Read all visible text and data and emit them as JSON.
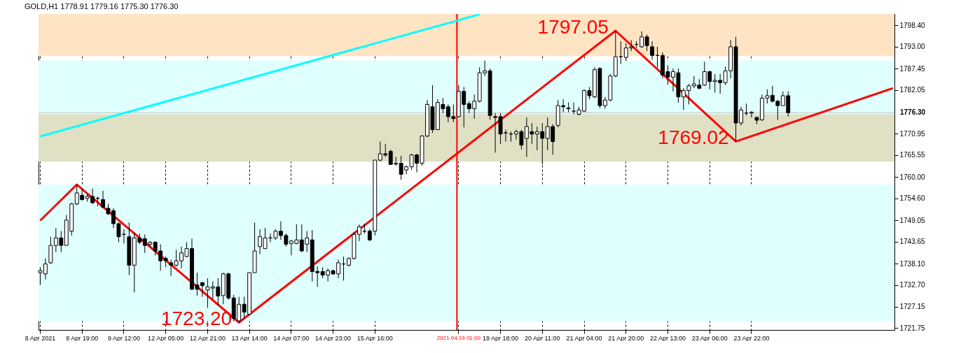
{
  "chart_data": {
    "type": "candlestick",
    "title": "GOLD,H1 1778.91 1779.16 1775.30 1776.30",
    "color": "#000000",
    "categories": [
      "8 Apr 2021",
      null,
      null,
      null,
      null,
      null,
      null,
      null,
      "8 Apr 19:00",
      null,
      null,
      null,
      null,
      null,
      null,
      null,
      "9 Apr 12:00",
      null,
      null,
      null,
      null,
      null,
      null,
      null,
      "12 Apr 05:00",
      null,
      null,
      null,
      null,
      null,
      null,
      null,
      "12 Apr 21:00",
      null,
      null,
      null,
      null,
      null,
      null,
      null,
      "13 Apr 14:00",
      null,
      null,
      null,
      null,
      null,
      null,
      null,
      "14 Apr 07:00",
      null,
      null,
      null,
      null,
      null,
      null,
      null,
      "14 Apr 23:00",
      null,
      null,
      null,
      null,
      null,
      null,
      null,
      "15 Apr 16:00",
      null,
      null,
      null,
      null,
      null,
      null,
      null,
      null,
      null,
      null,
      null,
      null,
      null,
      null,
      null,
      "2021.04.19 01:00",
      null,
      null,
      null,
      null,
      null,
      null,
      null,
      "19 Apr 18:00",
      null,
      null,
      null,
      null,
      null,
      null,
      null,
      "20 Apr 11:00",
      null,
      null,
      null,
      null,
      null,
      null,
      null,
      "21 Apr 04:00",
      null,
      null,
      null,
      null,
      null,
      null,
      null,
      "21 Apr 20:00",
      null,
      null,
      null,
      null,
      null,
      null,
      null,
      "22 Apr 13:00",
      null,
      null,
      null,
      null,
      null,
      null,
      null,
      "23 Apr 06:00",
      null,
      null,
      null,
      null,
      null,
      null,
      null,
      "23 Apr 22:00",
      null,
      null,
      null,
      null,
      null,
      null,
      null,
      null,
      null,
      null,
      null,
      null,
      null,
      null,
      null,
      null,
      null,
      null,
      null,
      null,
      null,
      null,
      null,
      null,
      null,
      null,
      null
    ],
    "ohlc": [
      [
        1735.8,
        1737.2,
        1732.7,
        1736.3
      ],
      [
        1735.5,
        1739.4,
        1734.1,
        1738.0
      ],
      [
        1738.3,
        1744.9,
        1738.0,
        1742.7
      ],
      [
        1742.7,
        1747.1,
        1741.0,
        1744.6
      ],
      [
        1744.6,
        1746.3,
        1741.0,
        1742.7
      ],
      [
        1742.7,
        1750.4,
        1742.7,
        1749.1
      ],
      [
        1746.3,
        1753.5,
        1745.2,
        1753.2
      ],
      [
        1753.2,
        1758.1,
        1752.9,
        1756.0
      ],
      [
        1755.4,
        1757.1,
        1754.0,
        1754.3
      ],
      [
        1754.6,
        1755.7,
        1753.8,
        1755.1
      ],
      [
        1755.1,
        1757.1,
        1753.2,
        1753.5
      ],
      [
        1754.6,
        1755.1,
        1752.6,
        1754.6
      ],
      [
        1754.3,
        1756.5,
        1752.1,
        1752.4
      ],
      [
        1752.1,
        1753.2,
        1750.4,
        1750.7
      ],
      [
        1751.5,
        1752.1,
        1747.1,
        1748.2
      ],
      [
        1748.2,
        1748.5,
        1743.5,
        1744.9
      ],
      [
        1745.5,
        1746.8,
        1743.2,
        1745.5
      ],
      [
        1744.9,
        1748.5,
        1735.2,
        1737.7
      ],
      [
        1737.7,
        1746.0,
        1730.8,
        1744.6
      ],
      [
        1744.6,
        1745.7,
        1743.0,
        1743.5
      ],
      [
        1744.4,
        1745.5,
        1740.8,
        1742.7
      ],
      [
        1743.0,
        1743.8,
        1742.4,
        1743.5
      ],
      [
        1743.5,
        1743.8,
        1740.2,
        1741.3
      ],
      [
        1741.3,
        1743.0,
        1736.3,
        1738.8
      ],
      [
        1739.4,
        1739.9,
        1737.2,
        1738.8
      ],
      [
        1738.3,
        1739.1,
        1735.0,
        1737.7
      ],
      [
        1737.7,
        1741.6,
        1737.4,
        1738.8
      ],
      [
        1738.8,
        1742.4,
        1736.9,
        1740.8
      ],
      [
        1739.9,
        1743.5,
        1739.7,
        1741.9
      ],
      [
        1741.9,
        1744.4,
        1731.4,
        1731.6
      ],
      [
        1732.7,
        1735.8,
        1730.0,
        1731.6
      ],
      [
        1733.3,
        1733.3,
        1729.7,
        1732.5
      ],
      [
        1731.4,
        1734.4,
        1726.9,
        1732.2
      ],
      [
        1731.9,
        1733.6,
        1729.1,
        1732.2
      ],
      [
        1732.2,
        1734.4,
        1727.5,
        1729.9
      ],
      [
        1730.0,
        1735.8,
        1727.8,
        1735.5
      ],
      [
        1735.5,
        1735.8,
        1728.9,
        1729.4
      ],
      [
        1729.4,
        1730.2,
        1723.5,
        1724.2
      ],
      [
        1723.6,
        1729.7,
        1723.2,
        1727.8
      ],
      [
        1727.8,
        1729.7,
        1724.2,
        1725.8
      ],
      [
        1725.3,
        1735.8,
        1725.0,
        1735.8
      ],
      [
        1735.8,
        1748.5,
        1735.8,
        1741.3
      ],
      [
        1742.4,
        1746.8,
        1740.5,
        1744.9
      ],
      [
        1741.9,
        1747.1,
        1741.9,
        1744.6
      ],
      [
        1744.6,
        1745.7,
        1743.5,
        1744.6
      ],
      [
        1744.6,
        1746.8,
        1744.1,
        1746.3
      ],
      [
        1746.3,
        1748.8,
        1744.1,
        1745.2
      ],
      [
        1745.2,
        1745.7,
        1742.4,
        1743.0
      ],
      [
        1743.2,
        1744.1,
        1740.2,
        1743.8
      ],
      [
        1743.2,
        1748.1,
        1743.0,
        1744.1
      ],
      [
        1744.1,
        1748.0,
        1741.0,
        1741.3
      ],
      [
        1743.0,
        1746.3,
        1741.0,
        1744.6
      ],
      [
        1744.1,
        1746.6,
        1733.6,
        1736.1
      ],
      [
        1736.1,
        1737.4,
        1732.2,
        1735.8
      ],
      [
        1736.1,
        1737.2,
        1734.4,
        1735.2
      ],
      [
        1735.2,
        1736.9,
        1733.6,
        1736.3
      ],
      [
        1736.3,
        1736.6,
        1735.2,
        1735.5
      ],
      [
        1735.5,
        1739.1,
        1734.4,
        1738.3
      ],
      [
        1738.0,
        1739.9,
        1733.8,
        1738.0
      ],
      [
        1737.7,
        1739.7,
        1737.4,
        1739.4
      ],
      [
        1739.4,
        1746.0,
        1739.1,
        1745.5
      ],
      [
        1745.5,
        1748.0,
        1743.8,
        1747.4
      ],
      [
        1746.3,
        1748.2,
        1745.7,
        1746.3
      ],
      [
        1746.3,
        1746.8,
        1743.8,
        1744.1
      ],
      [
        1746.3,
        1764.3,
        1745.2,
        1764.3
      ],
      [
        1764.3,
        1769.0,
        1764.0,
        1765.9
      ],
      [
        1765.9,
        1768.4,
        1765.1,
        1765.6
      ],
      [
        1766.5,
        1767.0,
        1763.2,
        1763.2
      ],
      [
        1763.3,
        1765.1,
        1762.9,
        1763.5
      ],
      [
        1763.5,
        1765.4,
        1759.3,
        1760.7
      ],
      [
        1761.8,
        1762.9,
        1760.7,
        1762.6
      ],
      [
        1762.6,
        1765.9,
        1761.8,
        1765.6
      ],
      [
        1765.6,
        1765.9,
        1761.2,
        1763.5
      ],
      [
        1763.5,
        1770.6,
        1762.9,
        1770.4
      ],
      [
        1770.4,
        1779.5,
        1770.1,
        1778.4
      ],
      [
        1777.8,
        1783.3,
        1771.2,
        1772.0
      ],
      [
        1772.0,
        1779.7,
        1772.0,
        1778.9
      ],
      [
        1778.4,
        1780.0,
        1776.2,
        1777.3
      ],
      [
        1777.8,
        1778.4,
        1773.9,
        1775.3
      ],
      [
        1775.3,
        1778.4,
        1773.9,
        1774.8
      ],
      [
        1775.3,
        1783.3,
        1775.1,
        1781.7
      ],
      [
        1781.7,
        1782.8,
        1772.6,
        1778.4
      ],
      [
        1778.6,
        1779.2,
        1776.2,
        1777.3
      ],
      [
        1777.3,
        1780.9,
        1774.8,
        1779.2
      ],
      [
        1779.2,
        1787.8,
        1778.9,
        1786.4
      ],
      [
        1786.4,
        1789.5,
        1785.6,
        1786.9
      ],
      [
        1786.9,
        1787.5,
        1774.5,
        1775.6
      ],
      [
        1775.3,
        1776.2,
        1766.2,
        1775.1
      ],
      [
        1775.3,
        1776.2,
        1768.4,
        1770.9
      ],
      [
        1771.2,
        1772.0,
        1769.0,
        1771.2
      ],
      [
        1770.9,
        1771.5,
        1769.0,
        1770.9
      ],
      [
        1770.9,
        1772.0,
        1769.5,
        1771.5
      ],
      [
        1771.5,
        1772.0,
        1767.0,
        1768.1
      ],
      [
        1769.8,
        1775.1,
        1765.1,
        1772.8
      ],
      [
        1771.5,
        1773.7,
        1768.4,
        1770.9
      ],
      [
        1770.9,
        1772.8,
        1766.8,
        1771.5
      ],
      [
        1771.5,
        1773.7,
        1763.2,
        1769.8
      ],
      [
        1769.8,
        1775.1,
        1766.8,
        1772.8
      ],
      [
        1772.8,
        1773.4,
        1765.7,
        1769.0
      ],
      [
        1773.1,
        1779.5,
        1772.6,
        1778.1
      ],
      [
        1778.1,
        1779.7,
        1776.4,
        1777.8
      ],
      [
        1777.3,
        1778.9,
        1776.4,
        1777.5
      ],
      [
        1776.7,
        1778.9,
        1775.9,
        1776.7
      ],
      [
        1775.9,
        1777.8,
        1775.6,
        1777.0
      ],
      [
        1776.7,
        1782.2,
        1776.4,
        1781.9
      ],
      [
        1781.9,
        1782.8,
        1779.7,
        1780.6
      ],
      [
        1780.3,
        1787.8,
        1780.0,
        1787.2
      ],
      [
        1787.5,
        1787.8,
        1777.5,
        1778.1
      ],
      [
        1778.1,
        1780.3,
        1777.3,
        1779.5
      ],
      [
        1779.5,
        1786.1,
        1779.2,
        1785.6
      ],
      [
        1785.6,
        1797.05,
        1785.3,
        1790.5
      ],
      [
        1790.5,
        1794.4,
        1788.6,
        1790.5
      ],
      [
        1790.3,
        1793.9,
        1789.4,
        1792.7
      ],
      [
        1792.7,
        1794.7,
        1791.9,
        1793.0
      ],
      [
        1793.6,
        1794.4,
        1792.7,
        1793.6
      ],
      [
        1793.0,
        1796.9,
        1792.7,
        1795.5
      ],
      [
        1795.5,
        1796.1,
        1791.9,
        1793.3
      ],
      [
        1793.0,
        1794.4,
        1789.7,
        1790.8
      ],
      [
        1790.8,
        1793.0,
        1787.8,
        1790.8
      ],
      [
        1790.8,
        1791.6,
        1785.0,
        1785.8
      ],
      [
        1786.7,
        1788.3,
        1783.4,
        1785.3
      ],
      [
        1785.3,
        1787.5,
        1781.7,
        1786.7
      ],
      [
        1786.4,
        1787.5,
        1778.9,
        1780.3
      ],
      [
        1780.3,
        1782.5,
        1777.0,
        1781.9
      ],
      [
        1781.9,
        1783.6,
        1778.4,
        1783.1
      ],
      [
        1783.1,
        1785.6,
        1782.5,
        1783.6
      ],
      [
        1783.3,
        1784.8,
        1782.2,
        1782.5
      ],
      [
        1783.3,
        1789.2,
        1783.1,
        1786.7
      ],
      [
        1786.7,
        1786.9,
        1782.2,
        1784.2
      ],
      [
        1784.2,
        1786.1,
        1781.4,
        1784.5
      ],
      [
        1784.5,
        1786.1,
        1781.1,
        1783.9
      ],
      [
        1783.9,
        1788.0,
        1783.3,
        1786.9
      ],
      [
        1786.9,
        1794.7,
        1785.0,
        1793.0
      ],
      [
        1793.0,
        1795.5,
        1769.02,
        1773.7
      ],
      [
        1773.7,
        1777.8,
        1773.1,
        1777.0
      ],
      [
        1776.2,
        1778.6,
        1775.6,
        1776.2
      ],
      [
        1776.2,
        1776.7,
        1775.1,
        1776.4
      ],
      [
        1775.1,
        1775.3,
        1773.4,
        1774.4
      ],
      [
        1774.5,
        1780.9,
        1774.2,
        1780.0
      ],
      [
        1780.0,
        1782.2,
        1778.6,
        1780.6
      ],
      [
        1780.7,
        1783.1,
        1778.9,
        1779.2
      ],
      [
        1779.2,
        1779.5,
        1774.5,
        1778.1
      ],
      [
        1778.1,
        1781.7,
        1778.1,
        1780.6
      ],
      [
        1780.6,
        1781.7,
        1775.3,
        1776.3
      ],
      null,
      null,
      null,
      null,
      null,
      null,
      null,
      null,
      null,
      null,
      null,
      null,
      null,
      null,
      null,
      null,
      null,
      null,
      null,
      null
    ],
    "series": [
      {
        "type": "line",
        "color": "#ff0000",
        "values": [
          1749.0,
          null,
          null,
          null,
          null,
          null,
          null,
          1758.1,
          null,
          null,
          null,
          null,
          null,
          null,
          null,
          null,
          null,
          null,
          null,
          null,
          null,
          null,
          null,
          null,
          null,
          null,
          null,
          null,
          null,
          null,
          null,
          null,
          null,
          null,
          null,
          null,
          null,
          null,
          1723.2,
          null,
          null,
          null,
          null,
          null,
          null,
          null,
          null,
          null,
          null,
          null,
          null,
          null,
          null,
          null,
          null,
          null,
          null,
          null,
          null,
          null,
          null,
          null,
          null,
          null,
          null,
          null,
          null,
          null,
          null,
          null,
          null,
          null,
          null,
          null,
          null,
          null,
          null,
          null,
          null,
          null,
          null,
          null,
          null,
          null,
          null,
          null,
          null,
          null,
          null,
          null,
          null,
          null,
          null,
          null,
          null,
          null,
          null,
          null,
          null,
          null,
          null,
          null,
          null,
          null,
          null,
          null,
          null,
          null,
          null,
          null,
          1797.05,
          null,
          null,
          null,
          null,
          null,
          null,
          null,
          null,
          null,
          null,
          null,
          null,
          null,
          null,
          null,
          null,
          null,
          null,
          null,
          null,
          null,
          null,
          1769.02,
          null,
          null,
          null,
          null,
          null,
          null,
          null,
          null,
          null,
          null,
          null,
          null,
          null,
          null,
          null,
          null,
          null,
          null,
          null,
          null,
          null,
          null,
          null,
          null,
          null,
          null,
          null,
          null,
          null,
          1782.5
        ],
        "value_labels": [
          null,
          null,
          null,
          null,
          null,
          null,
          null,
          null,
          null,
          null,
          null,
          null,
          null,
          null,
          null,
          null,
          null,
          null,
          null,
          null,
          null,
          null,
          null,
          null,
          null,
          null,
          null,
          null,
          null,
          null,
          null,
          null,
          null,
          null,
          null,
          null,
          null,
          null,
          "1723.20",
          null,
          null,
          null,
          null,
          null,
          null,
          null,
          null,
          null,
          null,
          null,
          null,
          null,
          null,
          null,
          null,
          null,
          null,
          null,
          null,
          null,
          null,
          null,
          null,
          null,
          null,
          null,
          null,
          null,
          null,
          null,
          null,
          null,
          null,
          null,
          null,
          null,
          null,
          null,
          null,
          null,
          null,
          null,
          null,
          null,
          null,
          null,
          null,
          null,
          null,
          null,
          null,
          null,
          null,
          null,
          null,
          null,
          null,
          null,
          null,
          null,
          null,
          null,
          null,
          null,
          null,
          null,
          null,
          null,
          null,
          null,
          "1797.05",
          null,
          null,
          null,
          null,
          null,
          null,
          null,
          null,
          null,
          null,
          null,
          null,
          null,
          null,
          null,
          null,
          null,
          null,
          null,
          null,
          null,
          null,
          "1769.02",
          null,
          null,
          null,
          null,
          null,
          null,
          null,
          null,
          null,
          null,
          null,
          null,
          null,
          null,
          null,
          null,
          null,
          null,
          null,
          null,
          null,
          null,
          null,
          null,
          null,
          null,
          null,
          null,
          null,
          null
        ]
      },
      {
        "type": "line",
        "color": "#00ffff",
        "values": [
          1770.3,
          null,
          null,
          null,
          null,
          null,
          null,
          null,
          null,
          null,
          null,
          null,
          null,
          null,
          null,
          null,
          null,
          null,
          null,
          null,
          null,
          null,
          null,
          null,
          null,
          null,
          null,
          null,
          null,
          null,
          null,
          null,
          null,
          null,
          null,
          null,
          null,
          null,
          null,
          null,
          null,
          null,
          null,
          null,
          null,
          null,
          null,
          null,
          null,
          null,
          null,
          null,
          null,
          null,
          null,
          null,
          null,
          null,
          null,
          null,
          null,
          null,
          null,
          null,
          null,
          null,
          null,
          null,
          null,
          null,
          null,
          null,
          null,
          null,
          null,
          null,
          null,
          null,
          null,
          null,
          null,
          null,
          null,
          null,
          1801.2,
          null,
          null,
          null,
          null,
          null,
          null,
          null,
          null,
          null,
          null,
          null,
          null,
          null,
          null,
          null,
          null,
          null,
          null,
          null,
          null,
          null,
          null,
          null,
          null,
          null,
          null,
          null,
          null,
          null,
          null,
          null,
          null,
          null,
          null,
          null,
          null,
          null,
          null,
          null,
          null,
          null,
          null,
          null,
          null,
          null,
          null,
          null,
          null,
          null,
          null,
          null,
          null,
          null,
          null,
          null,
          null,
          null,
          null,
          null,
          null,
          null,
          null,
          null,
          null,
          null,
          null,
          null,
          null,
          null,
          null,
          null,
          null,
          null,
          null,
          null,
          null,
          null,
          null,
          null
        ]
      }
    ],
    "ylim": [
      1721.3,
      1801.3
    ],
    "yticks": [
      {
        "value": 1721.75,
        "label": "1721.75"
      },
      {
        "value": 1727.15,
        "label": "1727.15"
      },
      {
        "value": 1732.7,
        "label": "1732.70"
      },
      {
        "value": 1738.1,
        "label": "1738.10"
      },
      {
        "value": 1743.65,
        "label": "1743.65"
      },
      {
        "value": 1749.05,
        "label": "1749.05"
      },
      {
        "value": 1754.6,
        "label": "1754.60"
      },
      {
        "value": 1760,
        "label": "1760.00"
      },
      {
        "value": 1765.55,
        "label": "1765.55"
      },
      {
        "value": 1770.95,
        "label": "1770.95"
      },
      {
        "value": 1782.05,
        "label": "1782.05"
      },
      {
        "value": 1787.45,
        "label": "1787.45"
      },
      {
        "value": 1793,
        "label": "1793.00"
      },
      {
        "value": 1798.4,
        "label": "1798.40"
      }
    ],
    "bands": [
      {
        "axis": "y",
        "from": 1790.65,
        "to": 1801.3,
        "color": "#ffe4c4"
      },
      {
        "axis": "y",
        "from": 1763.9,
        "to": 1789.5,
        "color": "#e0ffff"
      },
      {
        "axis": "y",
        "from": 1763.9,
        "to": 1775.9,
        "color": "#dfe0c4"
      },
      {
        "axis": "y",
        "from": 1723.5,
        "to": 1758.1,
        "color": "#e0ffff"
      }
    ],
    "ref_lines": [
      {
        "axis": "y",
        "value": 1776.3,
        "label": "1776.30",
        "color": "#c0c0c0"
      },
      {
        "axis": "x",
        "value": "2021.04.19 01:00",
        "color": "#ff0000"
      }
    ],
    "grid": "x"
  }
}
